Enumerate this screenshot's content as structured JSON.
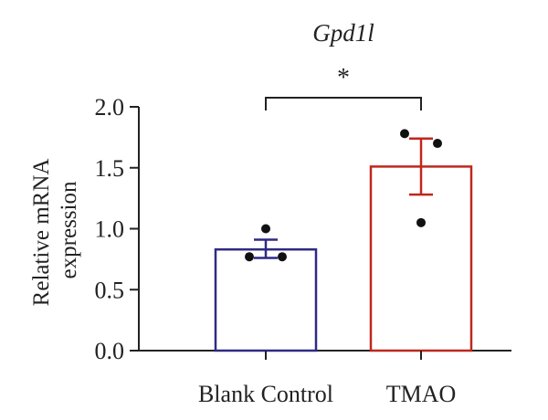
{
  "chart_data": {
    "type": "bar",
    "title": "Gpd1l",
    "ylabel_lines": [
      "Relative mRNA",
      "expression"
    ],
    "xlabel": "",
    "categories": [
      "Blank Control",
      "TMAO"
    ],
    "values": [
      0.83,
      1.51
    ],
    "error": [
      {
        "low": 0.76,
        "high": 0.91
      },
      {
        "low": 1.28,
        "high": 1.74
      }
    ],
    "points": [
      [
        0.77,
        1.0,
        0.77
      ],
      [
        1.78,
        1.05,
        1.7
      ]
    ],
    "bar_colors": [
      "#2e2a85",
      "#c0261c"
    ],
    "point_color": "#111111",
    "ylim": [
      0,
      2.0
    ],
    "yticks": [
      0.0,
      0.5,
      1.0,
      1.5,
      2.0
    ],
    "ytick_labels": [
      "0.0",
      "0.5",
      "1.0",
      "1.5",
      "2.0"
    ],
    "significance": {
      "label": "*",
      "from": 0,
      "to": 1
    },
    "grid": false,
    "legend": "none"
  }
}
